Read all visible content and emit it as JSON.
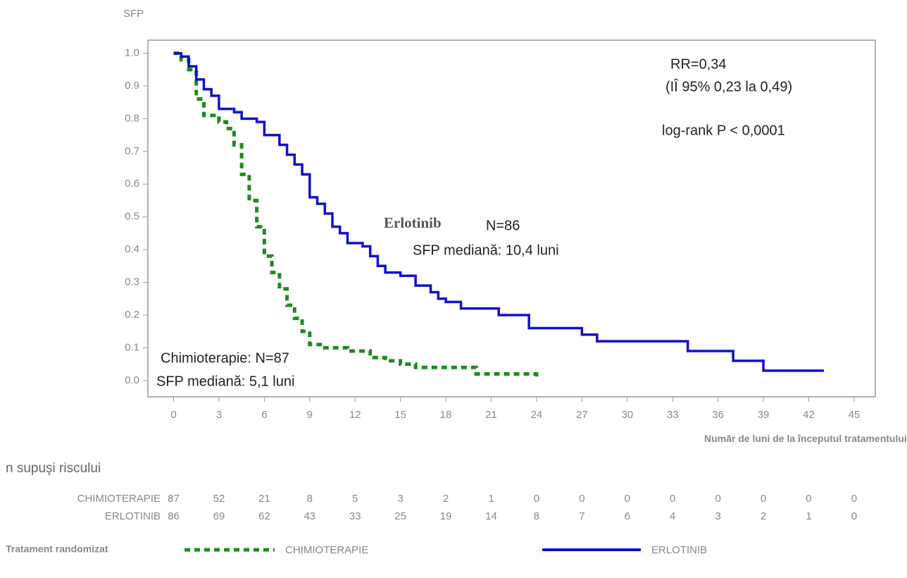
{
  "chart_data": {
    "type": "line",
    "step": "post",
    "y_label": "SFP",
    "x_label": "Număr de luni de la începutul tratamentului",
    "xlim": [
      -1.7,
      46.4
    ],
    "ylim": [
      -0.05,
      1.04
    ],
    "xticks": [
      0,
      3,
      6,
      9,
      12,
      15,
      18,
      21,
      24,
      27,
      30,
      33,
      36,
      39,
      42,
      45
    ],
    "yticks": [
      {
        "value": 1,
        "label": "1.0"
      },
      0.9,
      0.8,
      0.7,
      0.6,
      0.5,
      0.4,
      0.3,
      0.2,
      0.1,
      {
        "value": 0,
        "label": "0.0"
      }
    ],
    "series": [
      {
        "name": "CHIMIOTERAPIE",
        "color": "#1f8a1f",
        "dashed": true,
        "x": [
          0,
          0.5,
          1,
          1.5,
          2,
          3,
          3.5,
          4,
          4.5,
          5,
          5.5,
          6,
          6.5,
          7,
          7.5,
          8,
          8.5,
          9,
          10,
          11.5,
          13,
          14,
          15,
          16,
          20,
          23.5,
          24
        ],
        "values": [
          1.0,
          0.98,
          0.95,
          0.86,
          0.81,
          0.79,
          0.77,
          0.72,
          0.63,
          0.55,
          0.47,
          0.38,
          0.33,
          0.28,
          0.23,
          0.19,
          0.15,
          0.11,
          0.1,
          0.09,
          0.07,
          0.06,
          0.05,
          0.04,
          0.02,
          0.02,
          0.0
        ]
      },
      {
        "name": "ERLOTINIB",
        "color": "#1010cc",
        "dashed": false,
        "x": [
          0,
          0.5,
          1,
          1.5,
          2,
          2.5,
          3,
          4,
          4.5,
          5.5,
          6,
          7,
          7.5,
          8,
          8.5,
          9,
          9.5,
          10,
          10.5,
          11,
          11.5,
          12.5,
          13,
          13.5,
          14,
          15,
          16,
          17,
          17.5,
          18,
          19,
          21.5,
          23.5,
          27,
          28,
          34,
          37,
          39,
          43
        ],
        "values": [
          1.0,
          0.99,
          0.96,
          0.92,
          0.89,
          0.87,
          0.83,
          0.82,
          0.8,
          0.79,
          0.75,
          0.72,
          0.69,
          0.66,
          0.63,
          0.56,
          0.54,
          0.51,
          0.47,
          0.45,
          0.42,
          0.41,
          0.38,
          0.35,
          0.33,
          0.32,
          0.29,
          0.27,
          0.25,
          0.24,
          0.22,
          0.2,
          0.16,
          0.14,
          0.12,
          0.09,
          0.06,
          0.03,
          0.03
        ]
      }
    ],
    "annotations": [
      "RR=0,34",
      "(IÎ 95%  0,23 la 0,49)",
      "log-rank P < 0,0001",
      "Erlotinib",
      "N=86",
      "SFP mediană: 10,4 luni",
      "Chimioterapie: N=87",
      "SFP mediană: 5,1 luni"
    ],
    "risk_table": {
      "title": "n supuşi riscului",
      "rows": [
        {
          "values": [
            87,
            52,
            21,
            8,
            5,
            3,
            2,
            1,
            0,
            0,
            0,
            0,
            0,
            0,
            0,
            0
          ]
        },
        {
          "values": [
            86,
            69,
            62,
            43,
            33,
            25,
            19,
            14,
            8,
            7,
            6,
            4,
            3,
            2,
            1,
            0
          ]
        }
      ]
    },
    "legend_title": "Tratament randomizat"
  }
}
